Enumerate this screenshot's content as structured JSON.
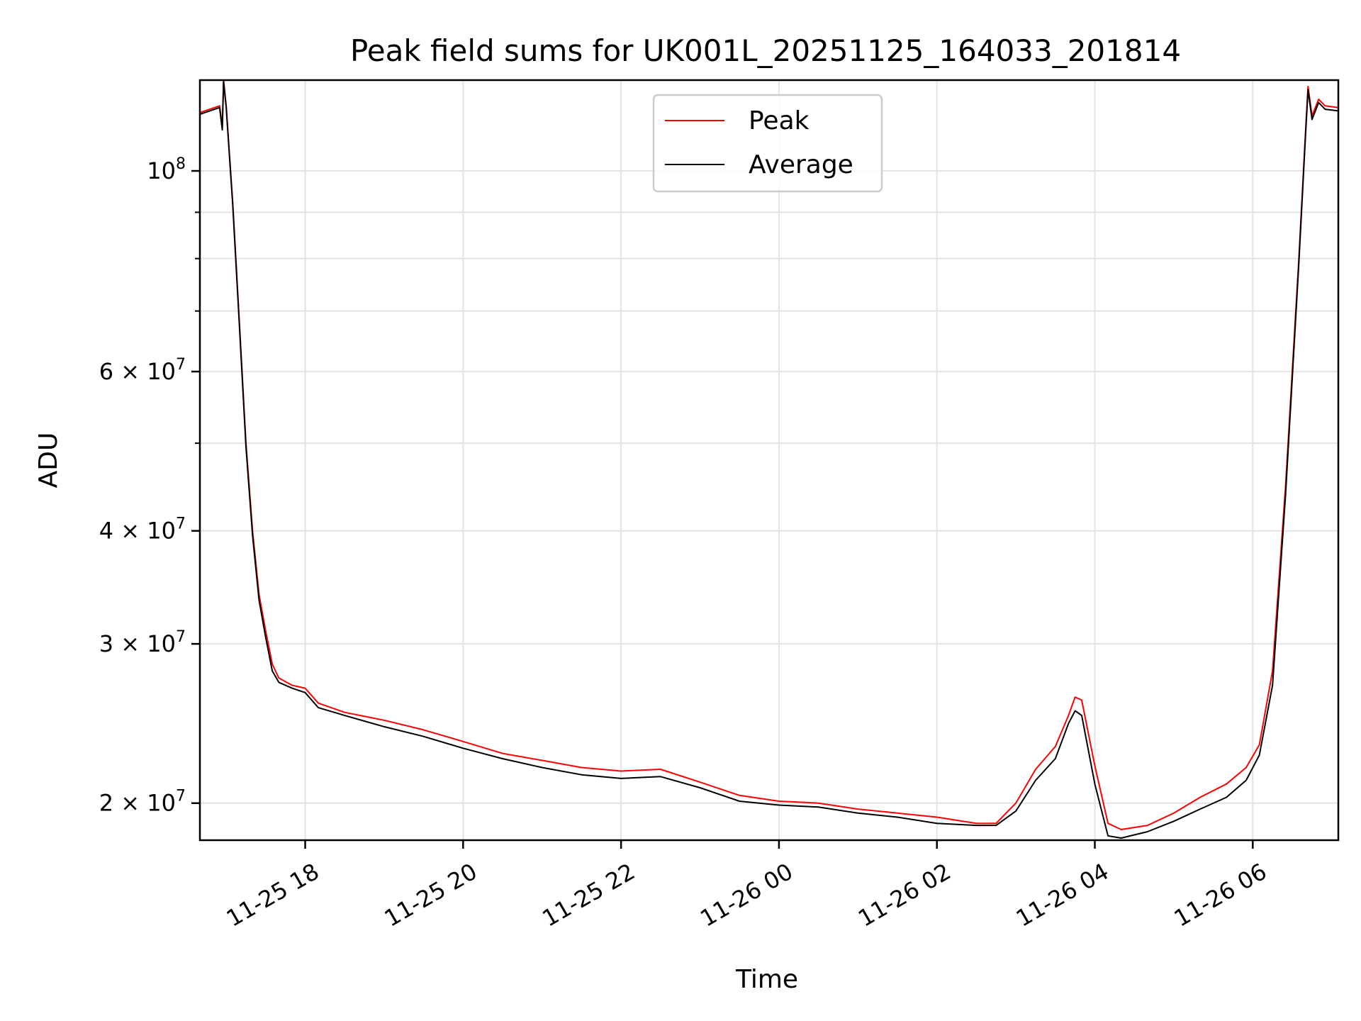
{
  "chart_data": {
    "type": "line",
    "title": "Peak field sums for UK001L_20251125_164033_201814",
    "xlabel": "Time",
    "ylabel": "ADU",
    "yscale": "log",
    "grid": true,
    "legend_position": "top-center",
    "xlim": [
      "2025-11-25 16:40",
      "2025-11-26 07:05"
    ],
    "ylim": [
      18200000,
      126000000
    ],
    "xticks": [
      {
        "t": "2025-11-25 18:00",
        "label": "11-25 18"
      },
      {
        "t": "2025-11-25 20:00",
        "label": "11-25 20"
      },
      {
        "t": "2025-11-25 22:00",
        "label": "11-25 22"
      },
      {
        "t": "2025-11-26 00:00",
        "label": "11-26 00"
      },
      {
        "t": "2025-11-26 02:00",
        "label": "11-26 02"
      },
      {
        "t": "2025-11-26 04:00",
        "label": "11-26 04"
      },
      {
        "t": "2025-11-26 06:00",
        "label": "11-26 06"
      }
    ],
    "yticks_major": [
      {
        "v": 100000000,
        "base": "10",
        "exp": "8"
      },
      {
        "v": 60000000,
        "base": "6 × 10",
        "exp": "7"
      },
      {
        "v": 40000000,
        "base": "4 × 10",
        "exp": "7"
      },
      {
        "v": 30000000,
        "base": "3 × 10",
        "exp": "7"
      },
      {
        "v": 20000000,
        "base": "2 × 10",
        "exp": "7"
      }
    ],
    "yticks_minor": [
      90000000,
      80000000,
      70000000,
      50000000
    ],
    "series": [
      {
        "name": "Peak",
        "color": "#ff0000",
        "x": [
          "2025-11-25 16:40",
          "2025-11-25 16:55",
          "2025-11-25 16:57",
          "2025-11-25 16:58",
          "2025-11-25 17:00",
          "2025-11-25 17:05",
          "2025-11-25 17:10",
          "2025-11-25 17:15",
          "2025-11-25 17:20",
          "2025-11-25 17:25",
          "2025-11-25 17:30",
          "2025-11-25 17:35",
          "2025-11-25 17:40",
          "2025-11-25 17:50",
          "2025-11-25 18:00",
          "2025-11-25 18:10",
          "2025-11-25 18:30",
          "2025-11-25 19:00",
          "2025-11-25 19:30",
          "2025-11-25 20:00",
          "2025-11-25 20:30",
          "2025-11-25 21:00",
          "2025-11-25 21:30",
          "2025-11-25 22:00",
          "2025-11-25 22:30",
          "2025-11-25 23:00",
          "2025-11-25 23:30",
          "2025-11-26 00:00",
          "2025-11-26 00:30",
          "2025-11-26 01:00",
          "2025-11-26 01:30",
          "2025-11-26 02:00",
          "2025-11-26 02:30",
          "2025-11-26 02:45",
          "2025-11-26 03:00",
          "2025-11-26 03:15",
          "2025-11-26 03:30",
          "2025-11-26 03:40",
          "2025-11-26 03:45",
          "2025-11-26 03:50",
          "2025-11-26 04:00",
          "2025-11-26 04:10",
          "2025-11-26 04:20",
          "2025-11-26 04:40",
          "2025-11-26 05:00",
          "2025-11-26 05:20",
          "2025-11-26 05:40",
          "2025-11-26 05:55",
          "2025-11-26 06:05",
          "2025-11-26 06:15",
          "2025-11-26 06:25",
          "2025-11-26 06:35",
          "2025-11-26 06:40",
          "2025-11-26 06:42",
          "2025-11-26 06:45",
          "2025-11-26 06:50",
          "2025-11-26 06:55",
          "2025-11-26 07:05"
        ],
        "y": [
          116000000,
          118000000,
          112000000,
          126000000,
          118000000,
          92000000,
          68000000,
          50000000,
          40000000,
          34000000,
          31000000,
          28500000,
          27500000,
          27000000,
          26800000,
          25800000,
          25200000,
          24700000,
          24100000,
          23400000,
          22700000,
          22300000,
          21900000,
          21700000,
          21800000,
          21100000,
          20400000,
          20100000,
          20000000,
          19700000,
          19500000,
          19300000,
          19000000,
          19000000,
          20000000,
          21800000,
          23100000,
          25000000,
          26200000,
          26000000,
          22000000,
          19000000,
          18700000,
          18900000,
          19500000,
          20300000,
          21000000,
          21900000,
          23200000,
          28000000,
          45000000,
          80000000,
          110000000,
          124000000,
          115000000,
          120000000,
          118000000,
          117500000
        ]
      },
      {
        "name": "Average",
        "color": "#000000",
        "x": [
          "2025-11-25 16:40",
          "2025-11-25 16:55",
          "2025-11-25 16:57",
          "2025-11-25 16:58",
          "2025-11-25 17:00",
          "2025-11-25 17:05",
          "2025-11-25 17:10",
          "2025-11-25 17:15",
          "2025-11-25 17:20",
          "2025-11-25 17:25",
          "2025-11-25 17:30",
          "2025-11-25 17:35",
          "2025-11-25 17:40",
          "2025-11-25 17:50",
          "2025-11-25 18:00",
          "2025-11-25 18:10",
          "2025-11-25 18:30",
          "2025-11-25 19:00",
          "2025-11-25 19:30",
          "2025-11-25 20:00",
          "2025-11-25 20:30",
          "2025-11-25 21:00",
          "2025-11-25 21:30",
          "2025-11-25 22:00",
          "2025-11-25 22:30",
          "2025-11-25 23:00",
          "2025-11-25 23:30",
          "2025-11-26 00:00",
          "2025-11-26 00:30",
          "2025-11-26 01:00",
          "2025-11-26 01:30",
          "2025-11-26 02:00",
          "2025-11-26 02:30",
          "2025-11-26 02:45",
          "2025-11-26 03:00",
          "2025-11-26 03:15",
          "2025-11-26 03:30",
          "2025-11-26 03:40",
          "2025-11-26 03:45",
          "2025-11-26 03:50",
          "2025-11-26 04:00",
          "2025-11-26 04:10",
          "2025-11-26 04:20",
          "2025-11-26 04:40",
          "2025-11-26 05:00",
          "2025-11-26 05:20",
          "2025-11-26 05:40",
          "2025-11-26 05:55",
          "2025-11-26 06:05",
          "2025-11-26 06:15",
          "2025-11-26 06:25",
          "2025-11-26 06:35",
          "2025-11-26 06:40",
          "2025-11-26 06:42",
          "2025-11-26 06:45",
          "2025-11-26 06:50",
          "2025-11-26 06:55",
          "2025-11-26 07:05"
        ],
        "y": [
          115500000,
          117500000,
          111000000,
          125500000,
          117500000,
          91500000,
          67500000,
          49500000,
          39500000,
          33500000,
          30500000,
          28000000,
          27200000,
          26800000,
          26500000,
          25500000,
          25000000,
          24300000,
          23700000,
          23000000,
          22400000,
          21900000,
          21500000,
          21300000,
          21400000,
          20800000,
          20100000,
          19900000,
          19800000,
          19500000,
          19300000,
          19000000,
          18900000,
          18900000,
          19600000,
          21200000,
          22400000,
          24500000,
          25300000,
          25000000,
          21000000,
          18400000,
          18300000,
          18600000,
          19100000,
          19700000,
          20300000,
          21200000,
          22600000,
          27000000,
          44000000,
          79000000,
          109000000,
          123000000,
          114000000,
          119000000,
          117000000,
          116500000
        ]
      }
    ]
  }
}
